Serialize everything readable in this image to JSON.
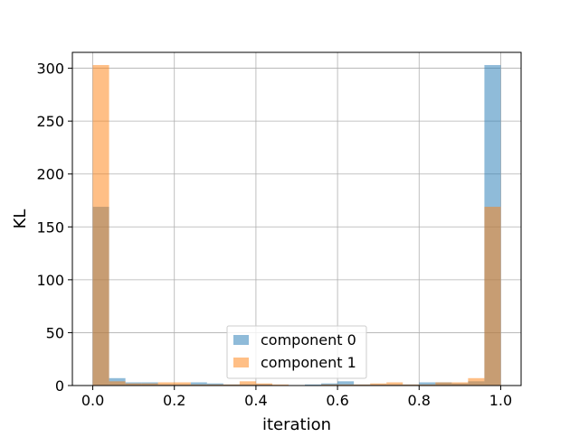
{
  "chart_data": {
    "type": "bar",
    "title": "",
    "xlabel": "iteration",
    "ylabel": "KL",
    "xlim": [
      -0.05,
      1.05
    ],
    "ylim": [
      0,
      315
    ],
    "xticks": [
      0.0,
      0.2,
      0.4,
      0.6,
      0.8,
      1.0
    ],
    "xtick_labels": [
      "0.0",
      "0.2",
      "0.4",
      "0.6",
      "0.8",
      "1.0"
    ],
    "yticks": [
      0,
      50,
      100,
      150,
      200,
      250,
      300
    ],
    "ytick_labels": [
      "0",
      "50",
      "100",
      "150",
      "200",
      "250",
      "300"
    ],
    "grid": true,
    "legend_position": "bottom-center",
    "bin_width": 0.04,
    "bin_starts": [
      0.0,
      0.04,
      0.08,
      0.12,
      0.16,
      0.2,
      0.24,
      0.28,
      0.32,
      0.36,
      0.4,
      0.44,
      0.48,
      0.52,
      0.56,
      0.6,
      0.64,
      0.68,
      0.72,
      0.76,
      0.8,
      0.84,
      0.88,
      0.92,
      0.96
    ],
    "series": [
      {
        "name": "component 0",
        "color": "#1f77b4",
        "opacity": 0.5,
        "values": [
          169,
          7,
          3,
          3,
          1,
          1,
          3,
          2,
          1,
          1,
          1,
          0,
          0,
          1,
          2,
          4,
          1,
          1,
          1,
          1,
          3,
          3,
          2,
          4,
          303
        ]
      },
      {
        "name": "component 1",
        "color": "#ff7f0e",
        "opacity": 0.5,
        "values": [
          303,
          4,
          2,
          2,
          3,
          3,
          1,
          1,
          1,
          4,
          2,
          1,
          0,
          0,
          1,
          1,
          1,
          2,
          3,
          1,
          1,
          3,
          3,
          7,
          169
        ]
      }
    ]
  }
}
